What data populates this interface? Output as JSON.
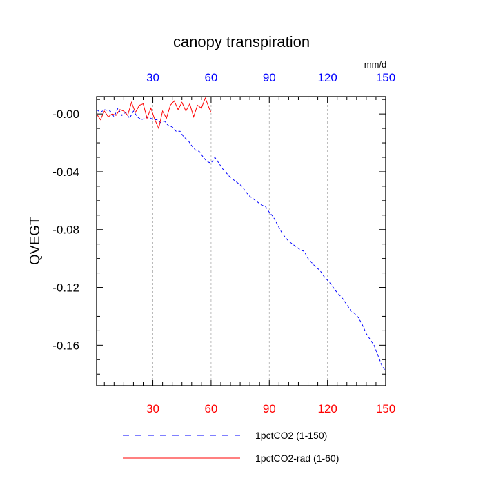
{
  "chart_data": {
    "type": "line",
    "title": "canopy transpiration",
    "ylabel": "QVEGT",
    "top_unit_label": "mm/d",
    "xlim": [
      1,
      150
    ],
    "ylim": [
      -0.188,
      0.012
    ],
    "grid": "vertical dashed at top-axis ticks",
    "x_ticks_bottom": [
      30,
      60,
      90,
      120,
      150
    ],
    "x_ticks_top": [
      30,
      60,
      90,
      120,
      150
    ],
    "y_ticks": [
      -0.16,
      -0.12,
      -0.08,
      -0.04,
      0.0
    ],
    "y_tick_labels": [
      "-0.16",
      "-0.12",
      "-0.08",
      "-0.04",
      "-0.00"
    ],
    "colors": {
      "bottom_axis_labels": "#ff0000",
      "top_axis_labels": "#0000ff",
      "series_1pctCO2": "#0000ff",
      "series_rad": "#ff0000"
    },
    "series": [
      {
        "name": "1pctCO2 (1-150)",
        "style": "dashed",
        "color": "#0000ff",
        "x": [
          1,
          3,
          5,
          8,
          10,
          12,
          14,
          16,
          18,
          20,
          22,
          24,
          26,
          28,
          30,
          32,
          34,
          36,
          38,
          40,
          42,
          44,
          46,
          48,
          50,
          52,
          54,
          56,
          58,
          60,
          62,
          64,
          66,
          68,
          70,
          72,
          74,
          76,
          78,
          80,
          82,
          84,
          86,
          88,
          90,
          92,
          94,
          96,
          98,
          100,
          102,
          104,
          106,
          108,
          110,
          112,
          114,
          116,
          118,
          120,
          122,
          124,
          126,
          128,
          130,
          132,
          134,
          136,
          138,
          140,
          142,
          144,
          146,
          148,
          150
        ],
        "y": [
          0.003,
          0.001,
          0.003,
          0.002,
          -0.002,
          0.004,
          -0.001,
          0.001,
          -0.003,
          0.002,
          -0.002,
          -0.004,
          -0.003,
          -0.002,
          -0.004,
          -0.004,
          -0.006,
          -0.005,
          -0.008,
          -0.009,
          -0.012,
          -0.012,
          -0.016,
          -0.018,
          -0.022,
          -0.025,
          -0.026,
          -0.03,
          -0.033,
          -0.034,
          -0.03,
          -0.034,
          -0.038,
          -0.041,
          -0.044,
          -0.046,
          -0.048,
          -0.05,
          -0.054,
          -0.057,
          -0.059,
          -0.061,
          -0.063,
          -0.064,
          -0.068,
          -0.071,
          -0.076,
          -0.081,
          -0.085,
          -0.088,
          -0.09,
          -0.092,
          -0.094,
          -0.095,
          -0.1,
          -0.103,
          -0.106,
          -0.108,
          -0.112,
          -0.115,
          -0.118,
          -0.122,
          -0.125,
          -0.128,
          -0.132,
          -0.136,
          -0.138,
          -0.141,
          -0.146,
          -0.152,
          -0.156,
          -0.16,
          -0.167,
          -0.174,
          -0.178
        ]
      },
      {
        "name": "1pctCO2-rad (1-60)",
        "style": "solid",
        "color": "#ff0000",
        "x": [
          1,
          3,
          5,
          7,
          9,
          11,
          13,
          15,
          17,
          19,
          21,
          23,
          25,
          27,
          29,
          31,
          33,
          35,
          37,
          39,
          41,
          43,
          45,
          47,
          49,
          51,
          53,
          55,
          57,
          59,
          60
        ],
        "y": [
          0.0,
          -0.004,
          0.002,
          -0.002,
          0.0,
          -0.001,
          0.003,
          0.002,
          -0.001,
          0.008,
          0.001,
          0.006,
          0.007,
          -0.003,
          0.004,
          -0.004,
          -0.01,
          0.002,
          -0.003,
          0.006,
          0.009,
          0.003,
          0.008,
          0.002,
          0.007,
          -0.002,
          0.006,
          0.004,
          0.011,
          0.004,
          0.001
        ]
      }
    ],
    "legend": {
      "placement": "bottom",
      "entries": [
        "1pctCO2 (1-150)",
        "1pctCO2-rad (1-60)"
      ]
    }
  }
}
